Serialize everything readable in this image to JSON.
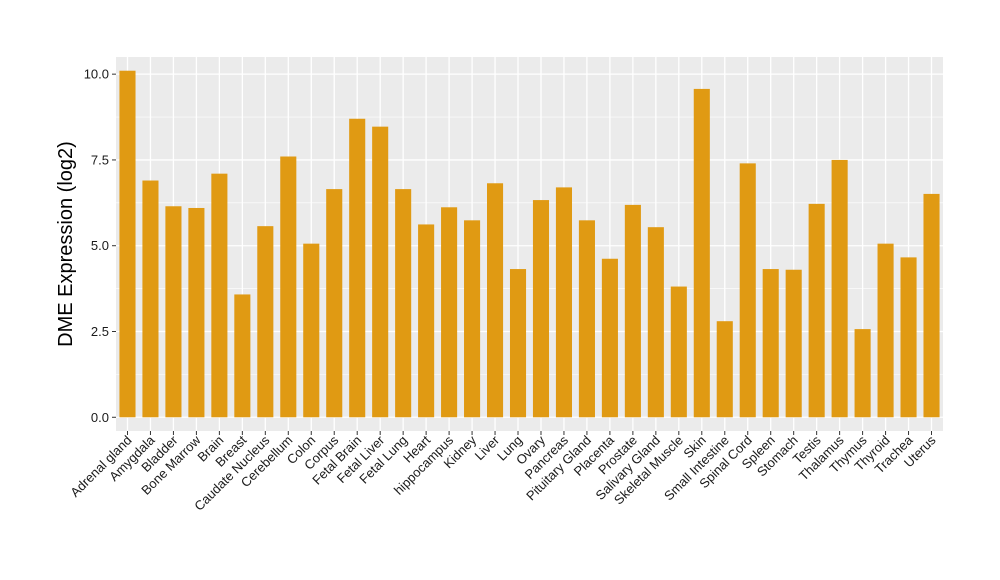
{
  "chart_data": {
    "type": "bar",
    "title": "",
    "xlabel": "",
    "ylabel": "DME Expression (log2)",
    "ylim": [
      -0.4,
      10.5
    ],
    "yticks": [
      0.0,
      2.5,
      5.0,
      7.5,
      10.0
    ],
    "ytick_labels": [
      "0.0",
      "2.5",
      "5.0",
      "7.5",
      "10.0"
    ],
    "grid": true,
    "legend": "none",
    "bar_color": "#E09A13",
    "panel_color": "#EBEBEB",
    "grid_color": "#FFFFFF",
    "categories": [
      "Adrenal gland",
      "Amygdala",
      "Bladder",
      "Bone Marrow",
      "Brain",
      "Breast",
      "Caudate Nucleus",
      "Cerebellum",
      "Colon",
      "Corpus",
      "Fetal Brain",
      "Fetal Liver",
      "Fetal Lung",
      "Heart",
      "hippocampus",
      "Kidney",
      "Liver",
      "Lung",
      "Ovary",
      "Pancreas",
      "Pituitary Gland",
      "Placenta",
      "Prostate",
      "Salivary Gland",
      "Skeletal Muscle",
      "Skin",
      "Small Intestine",
      "Spinal Cord",
      "Spleen",
      "Stomach",
      "Testis",
      "Thalamus",
      "Thymus",
      "Thyroid",
      "Trachea",
      "Uterus"
    ],
    "values": [
      10.1,
      6.9,
      6.15,
      6.1,
      7.1,
      3.58,
      5.57,
      7.6,
      5.06,
      6.65,
      8.7,
      8.47,
      6.65,
      5.62,
      6.12,
      5.74,
      6.82,
      4.32,
      6.33,
      6.7,
      5.74,
      4.62,
      6.19,
      5.54,
      3.81,
      9.57,
      2.8,
      7.4,
      4.32,
      4.3,
      6.22,
      7.5,
      2.57,
      5.06,
      4.66,
      6.51
    ]
  }
}
